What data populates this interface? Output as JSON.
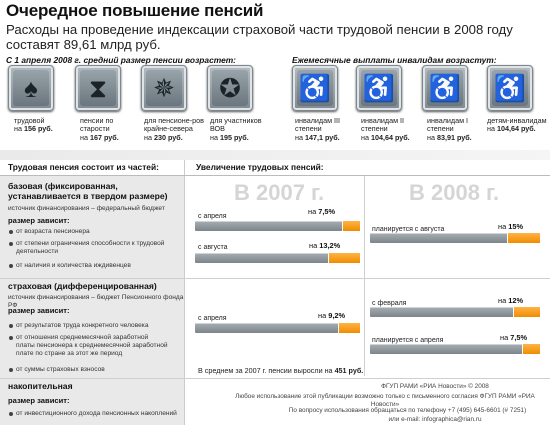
{
  "title": "Очередное повышение пенсий",
  "subtitle": "Расходы на проведение индексации страховой части трудовой пенсии в 2008 году составят 89,61 млрд руб.",
  "top_left_label": "С 1 апреля 2008 г. средний размер пенсии возрастет:",
  "top_right_label": "Ежемесячные выплаты инвалидам возрастут:",
  "pensions": [
    {
      "icon": "shovel-icon",
      "name": "трудовой",
      "pre": "на",
      "value": "156 руб."
    },
    {
      "icon": "hourglass-icon",
      "name": "пенсии по старости",
      "pre": "на",
      "value": "167 руб."
    },
    {
      "icon": "compass-icon",
      "name": "для пенсионе-ров крайне-севера",
      "pre": "на",
      "value": "230 руб."
    },
    {
      "icon": "order-star-icon",
      "name": "для участников ВОВ",
      "pre": "на",
      "value": "195 руб."
    }
  ],
  "disabled": [
    {
      "icon": "wheelchair-icon",
      "name": "инвалидам III степени",
      "pre": "на",
      "value": "147,1 руб."
    },
    {
      "icon": "wheelchair-icon",
      "name": "инвалидам II степени",
      "pre": "на",
      "value": "104,64 руб."
    },
    {
      "icon": "wheelchair-icon",
      "name": "инвалидам I степени",
      "pre": "на",
      "value": "83,91 руб."
    },
    {
      "icon": "wheelchair-helper-icon",
      "name": "детям-инвалидам",
      "pre": "на",
      "value": "104,64 руб."
    }
  ],
  "header_left": "Трудовая пенсия состоит из частей:",
  "header_right": "Увеличение трудовых пенсий:",
  "year_2007": "В 2007 г.",
  "year_2008": "В 2008 г.",
  "basic": {
    "title": "базовая (фиксированная, устанавливается в твердом размере)",
    "source": "источник финансирования – федеральный бюджет",
    "depends": "размер зависит:",
    "items": [
      "от возраста пенсионера",
      "от степени ограничения способности к трудовой деятельности",
      "от наличия и количества иждивенцев"
    ]
  },
  "insurance": {
    "title": "страховая (дифференцированная)",
    "source": "источник финансирования – бюджет Пенсионного фонда РФ",
    "depends": "размер зависит:",
    "items": [
      "от результатов труда конкретного человека",
      "от отношения среднемесячной заработной платы пенсионера к среднемесячной заработной плате по стране за этот же период",
      "от суммы страховых взносов"
    ]
  },
  "accum": {
    "title": "накопительная",
    "depends": "размер зависит:",
    "items": [
      "от инвестиционного дохода пенсионных накоплений"
    ]
  },
  "bars": {
    "b2007a": {
      "label": "с апреля",
      "pre": "на",
      "value": "7,5%"
    },
    "b2007b": {
      "label": "с августа",
      "pre": "на",
      "value": "13,2%"
    },
    "b2008a": {
      "label": "планируется с августа",
      "pre": "на",
      "value": "15%"
    },
    "i2007": {
      "label": "с апреля",
      "pre": "на",
      "value": "9,2%"
    },
    "i2008a": {
      "label": "с февраля",
      "pre": "на",
      "value": "12%"
    },
    "i2008b": {
      "label": "планируется с апреля",
      "pre": "на",
      "value": "7,5%"
    }
  },
  "avg_note_pre": "В среднем за 2007 г. пенсии выросли на",
  "avg_note_value": "451 руб.",
  "footer": {
    "l1": "ФГУП РАМИ «РИА Новости» © 2008",
    "l2": "Любое использование этой публикации возможно только с письменного согласия ФГУП РАМИ «РИА Новости»",
    "l3": "По вопросу использования обращаться по телефону +7 (495) 645-6601 (# 7251)",
    "l4": "или e-mail: infographica@rian.ru"
  },
  "colors": {
    "accent": "#f08c00",
    "bar": "#8a9399",
    "panel": "#e9e9e9"
  }
}
